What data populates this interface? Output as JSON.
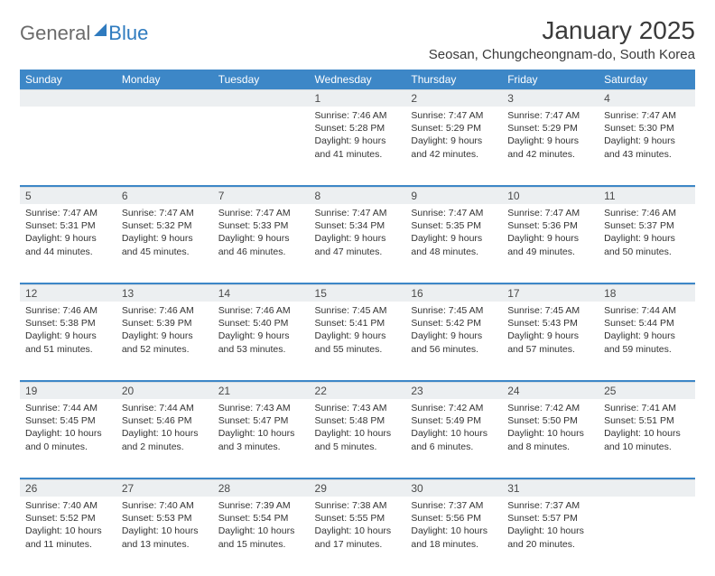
{
  "logo": {
    "general": "General",
    "blue": "Blue"
  },
  "title": {
    "month": "January 2025",
    "location": "Seosan, Chungcheongnam-do, South Korea"
  },
  "colors": {
    "header_bg": "#3d87c7",
    "header_fg": "#ffffff",
    "daynum_bg": "#eceff1",
    "text": "#333333",
    "logo_grey": "#6b6b6b",
    "logo_blue": "#2f7bbf"
  },
  "daysOfWeek": [
    "Sunday",
    "Monday",
    "Tuesday",
    "Wednesday",
    "Thursday",
    "Friday",
    "Saturday"
  ],
  "weeks": [
    [
      null,
      null,
      null,
      {
        "n": "1",
        "sunrise": "7:46 AM",
        "sunset": "5:28 PM",
        "dh": 9,
        "dm": 41
      },
      {
        "n": "2",
        "sunrise": "7:47 AM",
        "sunset": "5:29 PM",
        "dh": 9,
        "dm": 42
      },
      {
        "n": "3",
        "sunrise": "7:47 AM",
        "sunset": "5:29 PM",
        "dh": 9,
        "dm": 42
      },
      {
        "n": "4",
        "sunrise": "7:47 AM",
        "sunset": "5:30 PM",
        "dh": 9,
        "dm": 43
      }
    ],
    [
      {
        "n": "5",
        "sunrise": "7:47 AM",
        "sunset": "5:31 PM",
        "dh": 9,
        "dm": 44
      },
      {
        "n": "6",
        "sunrise": "7:47 AM",
        "sunset": "5:32 PM",
        "dh": 9,
        "dm": 45
      },
      {
        "n": "7",
        "sunrise": "7:47 AM",
        "sunset": "5:33 PM",
        "dh": 9,
        "dm": 46
      },
      {
        "n": "8",
        "sunrise": "7:47 AM",
        "sunset": "5:34 PM",
        "dh": 9,
        "dm": 47
      },
      {
        "n": "9",
        "sunrise": "7:47 AM",
        "sunset": "5:35 PM",
        "dh": 9,
        "dm": 48
      },
      {
        "n": "10",
        "sunrise": "7:47 AM",
        "sunset": "5:36 PM",
        "dh": 9,
        "dm": 49
      },
      {
        "n": "11",
        "sunrise": "7:46 AM",
        "sunset": "5:37 PM",
        "dh": 9,
        "dm": 50
      }
    ],
    [
      {
        "n": "12",
        "sunrise": "7:46 AM",
        "sunset": "5:38 PM",
        "dh": 9,
        "dm": 51
      },
      {
        "n": "13",
        "sunrise": "7:46 AM",
        "sunset": "5:39 PM",
        "dh": 9,
        "dm": 52
      },
      {
        "n": "14",
        "sunrise": "7:46 AM",
        "sunset": "5:40 PM",
        "dh": 9,
        "dm": 53
      },
      {
        "n": "15",
        "sunrise": "7:45 AM",
        "sunset": "5:41 PM",
        "dh": 9,
        "dm": 55
      },
      {
        "n": "16",
        "sunrise": "7:45 AM",
        "sunset": "5:42 PM",
        "dh": 9,
        "dm": 56
      },
      {
        "n": "17",
        "sunrise": "7:45 AM",
        "sunset": "5:43 PM",
        "dh": 9,
        "dm": 57
      },
      {
        "n": "18",
        "sunrise": "7:44 AM",
        "sunset": "5:44 PM",
        "dh": 9,
        "dm": 59
      }
    ],
    [
      {
        "n": "19",
        "sunrise": "7:44 AM",
        "sunset": "5:45 PM",
        "dh": 10,
        "dm": 0
      },
      {
        "n": "20",
        "sunrise": "7:44 AM",
        "sunset": "5:46 PM",
        "dh": 10,
        "dm": 2
      },
      {
        "n": "21",
        "sunrise": "7:43 AM",
        "sunset": "5:47 PM",
        "dh": 10,
        "dm": 3
      },
      {
        "n": "22",
        "sunrise": "7:43 AM",
        "sunset": "5:48 PM",
        "dh": 10,
        "dm": 5
      },
      {
        "n": "23",
        "sunrise": "7:42 AM",
        "sunset": "5:49 PM",
        "dh": 10,
        "dm": 6
      },
      {
        "n": "24",
        "sunrise": "7:42 AM",
        "sunset": "5:50 PM",
        "dh": 10,
        "dm": 8
      },
      {
        "n": "25",
        "sunrise": "7:41 AM",
        "sunset": "5:51 PM",
        "dh": 10,
        "dm": 10
      }
    ],
    [
      {
        "n": "26",
        "sunrise": "7:40 AM",
        "sunset": "5:52 PM",
        "dh": 10,
        "dm": 11
      },
      {
        "n": "27",
        "sunrise": "7:40 AM",
        "sunset": "5:53 PM",
        "dh": 10,
        "dm": 13
      },
      {
        "n": "28",
        "sunrise": "7:39 AM",
        "sunset": "5:54 PM",
        "dh": 10,
        "dm": 15
      },
      {
        "n": "29",
        "sunrise": "7:38 AM",
        "sunset": "5:55 PM",
        "dh": 10,
        "dm": 17
      },
      {
        "n": "30",
        "sunrise": "7:37 AM",
        "sunset": "5:56 PM",
        "dh": 10,
        "dm": 18
      },
      {
        "n": "31",
        "sunrise": "7:37 AM",
        "sunset": "5:57 PM",
        "dh": 10,
        "dm": 20
      },
      null
    ]
  ],
  "labels": {
    "sunrise": "Sunrise:",
    "sunset": "Sunset:",
    "daylight": "Daylight:",
    "hours": "hours",
    "and": "and",
    "minutes": "minutes."
  }
}
